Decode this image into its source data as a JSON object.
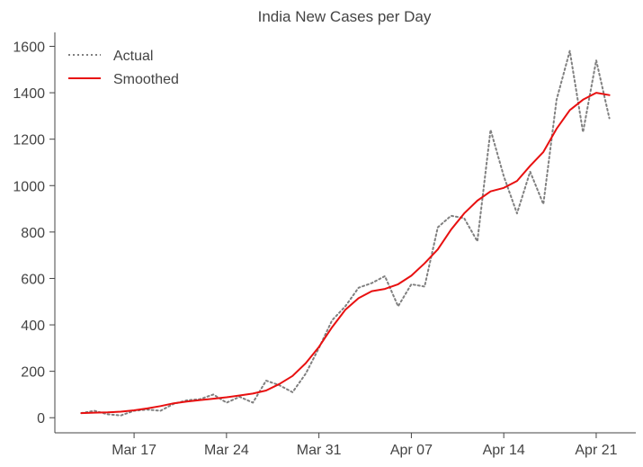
{
  "chart_data": {
    "type": "line",
    "title": "India New Cases per Day",
    "xlabel": "",
    "ylabel": "",
    "x": [
      "2020-03-13",
      "2020-03-14",
      "2020-03-15",
      "2020-03-16",
      "2020-03-17",
      "2020-03-18",
      "2020-03-19",
      "2020-03-20",
      "2020-03-21",
      "2020-03-22",
      "2020-03-23",
      "2020-03-24",
      "2020-03-25",
      "2020-03-26",
      "2020-03-27",
      "2020-03-28",
      "2020-03-29",
      "2020-03-30",
      "2020-03-31",
      "2020-04-01",
      "2020-04-02",
      "2020-04-03",
      "2020-04-04",
      "2020-04-05",
      "2020-04-06",
      "2020-04-07",
      "2020-04-08",
      "2020-04-09",
      "2020-04-10",
      "2020-04-11",
      "2020-04-12",
      "2020-04-13",
      "2020-04-14",
      "2020-04-15",
      "2020-04-16",
      "2020-04-17",
      "2020-04-18",
      "2020-04-19",
      "2020-04-20",
      "2020-04-21",
      "2020-04-22"
    ],
    "series": [
      {
        "name": "Actual",
        "color": "#808080",
        "style": "dotted",
        "values": [
          20,
          30,
          15,
          10,
          30,
          35,
          30,
          60,
          75,
          80,
          100,
          65,
          90,
          65,
          160,
          140,
          110,
          190,
          300,
          420,
          480,
          560,
          580,
          610,
          480,
          575,
          565,
          820,
          870,
          860,
          760,
          1240,
          1040,
          880,
          1060,
          920,
          1370,
          1580,
          1230,
          1540,
          1290
        ]
      },
      {
        "name": "Smoothed",
        "color": "#e81010",
        "style": "solid",
        "values": [
          20,
          22,
          23,
          26,
          32,
          40,
          50,
          62,
          70,
          76,
          82,
          88,
          96,
          104,
          117,
          145,
          180,
          235,
          305,
          390,
          465,
          515,
          545,
          555,
          575,
          612,
          665,
          725,
          810,
          880,
          935,
          975,
          990,
          1020,
          1085,
          1145,
          1245,
          1325,
          1370,
          1400,
          1390
        ]
      }
    ],
    "xtick_labels": [
      "Mar 17",
      "Mar 24",
      "Mar 31",
      "Apr 07",
      "Apr 14",
      "Apr 21"
    ],
    "xtick_dates": [
      "2020-03-17",
      "2020-03-24",
      "2020-03-31",
      "2020-04-07",
      "2020-04-14",
      "2020-04-21"
    ],
    "ytick_labels": [
      "0",
      "200",
      "400",
      "600",
      "800",
      "1000",
      "1200",
      "1400",
      "1600"
    ],
    "ytick_values": [
      0,
      200,
      400,
      600,
      800,
      1000,
      1200,
      1400,
      1600
    ],
    "xlim": [
      "2020-03-11",
      "2020-04-24"
    ],
    "ylim": [
      -65,
      1660
    ],
    "grid": false,
    "legend_position": "top-left"
  }
}
